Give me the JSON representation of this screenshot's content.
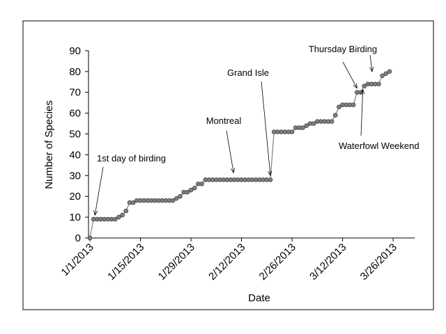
{
  "chart_data": {
    "type": "line",
    "title": "",
    "xlabel": "Date",
    "ylabel": "Number of Species",
    "xlim": [
      "1/1/2013",
      "4/1/2013"
    ],
    "ylim": [
      0,
      90
    ],
    "yticks": [
      0,
      10,
      20,
      30,
      40,
      50,
      60,
      70,
      80,
      90
    ],
    "xticks": [
      "1/1/2013",
      "1/15/2013",
      "1/29/2013",
      "2/12/2013",
      "2/26/2013",
      "3/12/2013",
      "3/26/2013"
    ],
    "grid": false,
    "legend": "none",
    "marker_color": "#808080",
    "x": [
      "1/1",
      "1/2",
      "1/3",
      "1/4",
      "1/5",
      "1/6",
      "1/7",
      "1/8",
      "1/9",
      "1/10",
      "1/11",
      "1/12",
      "1/13",
      "1/14",
      "1/15",
      "1/16",
      "1/17",
      "1/18",
      "1/19",
      "1/20",
      "1/21",
      "1/22",
      "1/23",
      "1/24",
      "1/25",
      "1/26",
      "1/27",
      "1/28",
      "1/29",
      "1/30",
      "1/31",
      "2/1",
      "2/2",
      "2/3",
      "2/4",
      "2/5",
      "2/6",
      "2/7",
      "2/8",
      "2/9",
      "2/10",
      "2/11",
      "2/12",
      "2/13",
      "2/14",
      "2/15",
      "2/16",
      "2/17",
      "2/18",
      "2/19",
      "2/20",
      "2/21",
      "2/22",
      "2/23",
      "2/24",
      "2/25",
      "2/26",
      "2/27",
      "2/28",
      "3/1",
      "3/2",
      "3/3",
      "3/4",
      "3/5",
      "3/6",
      "3/7",
      "3/8",
      "3/9",
      "3/10",
      "3/11",
      "3/12",
      "3/13",
      "3/14",
      "3/15",
      "3/16",
      "3/17",
      "3/18",
      "3/19",
      "3/20",
      "3/21",
      "3/22",
      "3/23",
      "3/24",
      "3/25"
    ],
    "y": [
      0,
      9,
      9,
      9,
      9,
      9,
      9,
      9,
      10,
      11,
      13,
      17,
      17,
      18,
      18,
      18,
      18,
      18,
      18,
      18,
      18,
      18,
      18,
      18,
      19,
      20,
      22,
      22,
      23,
      24,
      26,
      26,
      28,
      28,
      28,
      28,
      28,
      28,
      28,
      28,
      28,
      28,
      28,
      28,
      28,
      28,
      28,
      28,
      28,
      28,
      28,
      51,
      51,
      51,
      51,
      51,
      51,
      53,
      53,
      53,
      54,
      55,
      55,
      56,
      56,
      56,
      56,
      56,
      59,
      63,
      64,
      64,
      64,
      64,
      70,
      70,
      73,
      74,
      74,
      74,
      74,
      78,
      79,
      80
    ],
    "annotations": [
      {
        "text": "1st day of birding",
        "date": "1/2"
      },
      {
        "text": "Montreal",
        "date": "2/10"
      },
      {
        "text": "Grand Isle",
        "date": "2/20"
      },
      {
        "text": "Thursday Birding",
        "date": [
          "3/16",
          "3/23"
        ]
      },
      {
        "text": "Waterfowl Weekend",
        "date": "3/18"
      }
    ]
  }
}
